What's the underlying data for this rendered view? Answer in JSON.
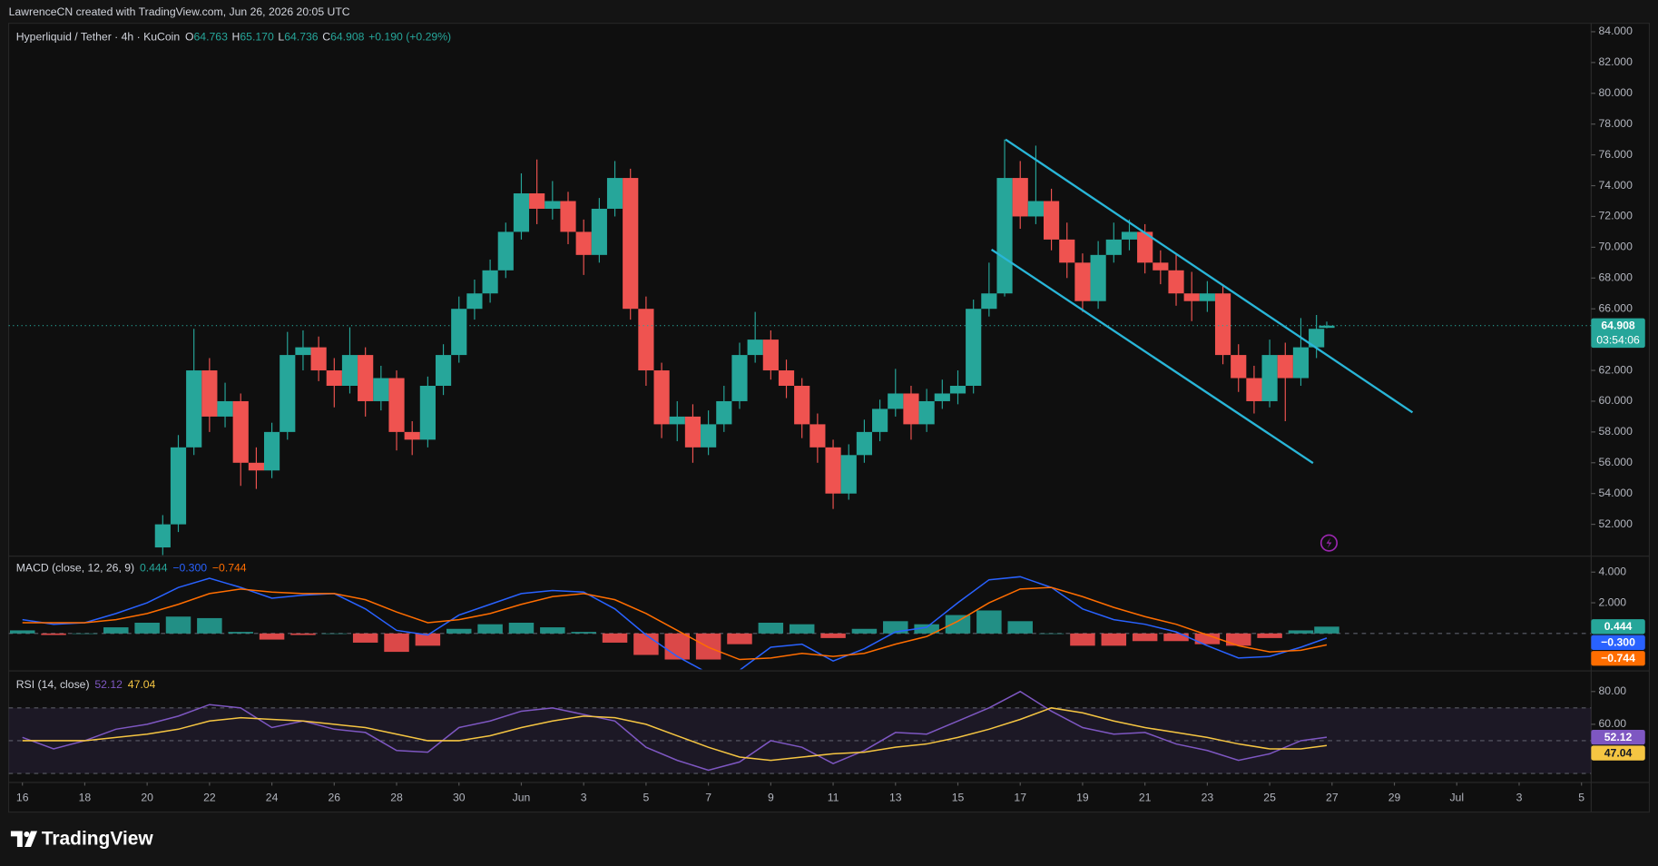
{
  "header": {
    "attribution": "LawrenceCN created with TradingView.com, Jun 26, 2026 20:05 UTC",
    "brand": "TradingView"
  },
  "chart_data": [
    {
      "type": "candlestick",
      "title": "Hyperliquid / Tether · 4h · KuCoin",
      "ohlc_legend": [
        {
          "key": "O",
          "value": "64.763"
        },
        {
          "key": "H",
          "value": "65.170"
        },
        {
          "key": "L",
          "value": "64.736"
        },
        {
          "key": "C",
          "value": "64.908"
        }
      ],
      "change": "+0.190 (+0.29%)",
      "countdown": "03:54:06",
      "up_color": "#26a69a",
      "down_color": "#ef5350",
      "x": [
        4.5,
        5,
        5.5,
        6,
        6.5,
        7,
        7.5,
        8,
        8.5,
        9,
        9.5,
        10,
        10.5,
        11,
        11.5,
        12,
        12.5,
        13,
        13.5,
        14,
        14.5,
        15,
        15.5,
        16,
        16.5,
        17,
        17.5,
        18,
        18.5,
        19,
        19.5,
        20,
        20.5,
        21,
        21.5,
        22,
        22.5,
        23,
        23.5,
        24,
        24.5,
        25,
        25.5,
        26,
        26.5,
        27,
        27.5,
        28,
        28.5,
        29,
        29.5,
        30,
        30.5,
        31,
        31.5,
        32,
        32.5,
        33,
        33.5,
        34,
        34.5,
        35,
        35.5,
        36,
        36.5,
        37,
        37.5,
        38,
        38.5,
        39,
        39.5,
        40,
        40.5,
        41,
        41.5,
        41.83
      ],
      "open": [
        50.5,
        52,
        57,
        62,
        59,
        60,
        56,
        55.5,
        58,
        63,
        63.5,
        62,
        61,
        63,
        60,
        61.5,
        58,
        57.5,
        61,
        63,
        66,
        67,
        68.5,
        71,
        73.5,
        72.5,
        73,
        71,
        69.5,
        72.5,
        74.5,
        66,
        62,
        58.5,
        59,
        57,
        58.5,
        60,
        63,
        64,
        62,
        61,
        58.5,
        57,
        54,
        56.5,
        58,
        59.5,
        60.5,
        58.5,
        60,
        60.5,
        61,
        66,
        67,
        74.5,
        72,
        73,
        70.5,
        69,
        66.5,
        69.5,
        70.5,
        71,
        69,
        68.5,
        67,
        66.5,
        67,
        63,
        61.5,
        60,
        63,
        61.5,
        63.5,
        64.763
      ],
      "high": [
        52.6,
        57.8,
        64.7,
        62.8,
        61.2,
        60.5,
        57,
        58.6,
        64.5,
        64.6,
        64.2,
        62.8,
        64.8,
        63.5,
        62.3,
        62,
        58.7,
        61.6,
        63.7,
        66.8,
        67.9,
        69.2,
        71.6,
        74.8,
        75.7,
        74.3,
        73.6,
        71.8,
        73.2,
        75.6,
        75.1,
        66.8,
        62.5,
        60,
        59.8,
        59.4,
        61,
        63.8,
        65.8,
        64.6,
        62.7,
        61.5,
        59.2,
        57.5,
        57.2,
        58.8,
        60.1,
        62.1,
        61,
        60.8,
        61.4,
        62,
        66.6,
        69,
        77,
        75.6,
        76.6,
        73.8,
        71.6,
        69.6,
        70.4,
        71.6,
        71.8,
        71.5,
        69.8,
        69.6,
        68.4,
        67.8,
        67.6,
        63.7,
        62.3,
        64,
        63.8,
        65.4,
        65.6,
        65.17
      ],
      "low": [
        50,
        51.5,
        56.5,
        58,
        58.3,
        54.5,
        54.3,
        55,
        57.5,
        62,
        61.3,
        59.6,
        60.5,
        59,
        59.4,
        56.8,
        56.5,
        57,
        60.4,
        62.5,
        65.3,
        66.4,
        68,
        70.5,
        71.5,
        71.8,
        70.2,
        68.2,
        69,
        72,
        65.3,
        61,
        57.6,
        57.4,
        56,
        56.5,
        58,
        59.5,
        62.5,
        61.4,
        60.2,
        57.6,
        56,
        53,
        53.6,
        56,
        57.4,
        59,
        57.5,
        58,
        59.5,
        59.8,
        60.5,
        65.5,
        66.8,
        71.2,
        71.5,
        69.8,
        68,
        65.8,
        66,
        69,
        69.8,
        68.3,
        67.6,
        66.2,
        65.2,
        65.8,
        62.4,
        60.6,
        59.2,
        59.6,
        58.7,
        61,
        62.8,
        64.736
      ],
      "close": [
        52,
        57,
        62,
        59,
        60,
        56,
        55.5,
        58,
        63,
        63.5,
        62,
        61,
        63,
        60,
        61.5,
        58,
        57.5,
        61,
        63,
        66,
        67,
        68.5,
        71,
        73.5,
        72.5,
        73,
        71,
        69.5,
        72.5,
        74.5,
        66,
        62,
        58.5,
        59,
        57,
        58.5,
        60,
        63,
        64,
        62,
        61,
        58.5,
        57,
        54,
        56.5,
        58,
        59.5,
        60.5,
        58.5,
        60,
        60.5,
        61,
        66,
        67,
        74.5,
        72,
        73,
        70.5,
        69,
        66.5,
        69.5,
        70.5,
        71,
        69,
        68.5,
        67,
        66.5,
        67,
        63,
        61.5,
        60,
        63,
        61.5,
        63.5,
        64.7,
        64.908
      ],
      "trendline_color": "#29b6d8",
      "trendlines": [
        [
          [
            31.53,
            77.0
          ],
          [
            44.58,
            59.27
          ]
        ],
        [
          [
            31.08,
            69.85
          ],
          [
            41.39,
            55.98
          ]
        ]
      ],
      "xlim": [
        -0.44,
        50.31
      ],
      "ylim": [
        50.0,
        84.55
      ],
      "xticks": [
        {
          "value": 0,
          "label": "16"
        },
        {
          "value": 2,
          "label": "18"
        },
        {
          "value": 4,
          "label": "20"
        },
        {
          "value": 6,
          "label": "22"
        },
        {
          "value": 8,
          "label": "24"
        },
        {
          "value": 10,
          "label": "26"
        },
        {
          "value": 12,
          "label": "28"
        },
        {
          "value": 14,
          "label": "30"
        },
        {
          "value": 16,
          "label": "Jun"
        },
        {
          "value": 18,
          "label": "3"
        },
        {
          "value": 20,
          "label": "5"
        },
        {
          "value": 22,
          "label": "7"
        },
        {
          "value": 24,
          "label": "9"
        },
        {
          "value": 26,
          "label": "11"
        },
        {
          "value": 28,
          "label": "13"
        },
        {
          "value": 30,
          "label": "15"
        },
        {
          "value": 32,
          "label": "17"
        },
        {
          "value": 34,
          "label": "19"
        },
        {
          "value": 36,
          "label": "21"
        },
        {
          "value": 38,
          "label": "23"
        },
        {
          "value": 40,
          "label": "25"
        },
        {
          "value": 42,
          "label": "27"
        },
        {
          "value": 44,
          "label": "29"
        },
        {
          "value": 46,
          "label": "Jul"
        },
        {
          "value": 48,
          "label": "3"
        },
        {
          "value": 50,
          "label": "5"
        }
      ],
      "yticks": [
        {
          "value": 52,
          "label": "52.000"
        },
        {
          "value": 54,
          "label": "54.000"
        },
        {
          "value": 56,
          "label": "56.000"
        },
        {
          "value": 58,
          "label": "58.000"
        },
        {
          "value": 60,
          "label": "60.000"
        },
        {
          "value": 62,
          "label": "62.000"
        },
        {
          "value": 64,
          "label": "64.000"
        },
        {
          "value": 66,
          "label": "66.000"
        },
        {
          "value": 68,
          "label": "68.000"
        },
        {
          "value": 70,
          "label": "70.000"
        },
        {
          "value": 72,
          "label": "72.000"
        },
        {
          "value": 74,
          "label": "74.000"
        },
        {
          "value": 76,
          "label": "76.000"
        },
        {
          "value": 78,
          "label": "78.000"
        },
        {
          "value": 80,
          "label": "80.000"
        },
        {
          "value": 82,
          "label": "82.000"
        },
        {
          "value": 84,
          "label": "84.000"
        }
      ]
    },
    {
      "type": "macd",
      "title": "MACD (close, 12, 26, 9)",
      "x": [
        0,
        1,
        2,
        3,
        4,
        5,
        6,
        7,
        8,
        9,
        10,
        11,
        12,
        13,
        14,
        15,
        16,
        17,
        18,
        19,
        20,
        21,
        22,
        23,
        24,
        25,
        26,
        27,
        28,
        29,
        30,
        31,
        32,
        33,
        34,
        35,
        36,
        37,
        38,
        39,
        40,
        41,
        41.83
      ],
      "series": [
        {
          "type": "histogram",
          "color": "#26a69a",
          "negative_color": "#ff5252",
          "value_label": "0.444",
          "values": [
            0.2,
            -0.1,
            0,
            0.4,
            0.7,
            1.1,
            1.0,
            0.1,
            -0.4,
            -0.1,
            0,
            -0.6,
            -1.2,
            -0.8,
            0.3,
            0.6,
            0.7,
            0.4,
            0.1,
            -0.6,
            -1.4,
            -1.7,
            -1.7,
            -0.7,
            0.7,
            0.6,
            -0.3,
            0.3,
            0.8,
            0.6,
            1.2,
            1.5,
            0.8,
            0,
            -0.8,
            -0.8,
            -0.5,
            -0.5,
            -0.7,
            -0.8,
            -0.3,
            0.2,
            0.444
          ]
        },
        {
          "type": "line",
          "color": "#2962ff",
          "value_label": "−0.300",
          "values": [
            0.9,
            0.6,
            0.7,
            1.3,
            2.0,
            3.0,
            3.6,
            3.0,
            2.3,
            2.5,
            2.6,
            1.6,
            0.2,
            -0.1,
            1.2,
            1.9,
            2.6,
            2.8,
            2.7,
            1.6,
            -0.1,
            -1.5,
            -2.6,
            -2.4,
            -0.9,
            -0.7,
            -1.8,
            -1.0,
            0.1,
            0.4,
            2.0,
            3.5,
            3.7,
            3.0,
            1.6,
            0.9,
            0.6,
            0.1,
            -0.8,
            -1.6,
            -1.5,
            -0.9,
            -0.3
          ]
        },
        {
          "type": "line",
          "color": "#ff6d00",
          "value_label": "−0.744",
          "values": [
            0.7,
            0.7,
            0.7,
            0.9,
            1.3,
            1.9,
            2.6,
            2.9,
            2.7,
            2.6,
            2.6,
            2.2,
            1.4,
            0.7,
            0.9,
            1.3,
            1.9,
            2.4,
            2.6,
            2.2,
            1.3,
            0.2,
            -0.9,
            -1.7,
            -1.6,
            -1.3,
            -1.5,
            -1.3,
            -0.7,
            -0.2,
            0.8,
            2.0,
            2.9,
            3.0,
            2.4,
            1.7,
            1.1,
            0.6,
            -0.1,
            -0.8,
            -1.2,
            -1.1,
            -0.744
          ]
        }
      ],
      "ylim": [
        -2.34,
        4.97
      ],
      "yticks": [
        {
          "value": 2,
          "label": "2.000"
        },
        {
          "value": 4,
          "label": "4.000"
        }
      ]
    },
    {
      "type": "rsi",
      "title": "RSI (14, close)",
      "x": [
        0,
        1,
        2,
        3,
        4,
        5,
        6,
        7,
        8,
        9,
        10,
        11,
        12,
        13,
        14,
        15,
        16,
        17,
        18,
        19,
        20,
        21,
        22,
        23,
        24,
        25,
        26,
        27,
        28,
        29,
        30,
        31,
        32,
        33,
        34,
        35,
        36,
        37,
        38,
        39,
        40,
        41,
        41.83
      ],
      "series": [
        {
          "type": "line",
          "color": "#7e57c2",
          "value_label": "52.12",
          "values": [
            52,
            45,
            50,
            57,
            60,
            65,
            72,
            70,
            58,
            62,
            57,
            55,
            44,
            43,
            58,
            62,
            68,
            70,
            66,
            62,
            46,
            38,
            32,
            37,
            50,
            46,
            36,
            44,
            55,
            54,
            62,
            70,
            80,
            68,
            58,
            54,
            55,
            48,
            44,
            38,
            42,
            50,
            52.12
          ]
        },
        {
          "type": "line",
          "color": "#f5c542",
          "value_label": "47.04",
          "values": [
            50,
            50,
            50,
            52,
            54,
            57,
            62,
            64,
            63,
            62,
            60,
            58,
            54,
            50,
            50,
            53,
            58,
            62,
            65,
            64,
            60,
            53,
            46,
            40,
            38,
            40,
            42,
            43,
            46,
            48,
            52,
            57,
            63,
            70,
            67,
            62,
            58,
            55,
            52,
            48,
            45,
            45,
            47.04
          ]
        }
      ],
      "bands": [
        70,
        50,
        30
      ],
      "ylim": [
        24.5,
        91.6
      ],
      "yticks": [
        {
          "value": 60,
          "label": "60.00"
        },
        {
          "value": 80,
          "label": "80.00"
        }
      ]
    }
  ]
}
